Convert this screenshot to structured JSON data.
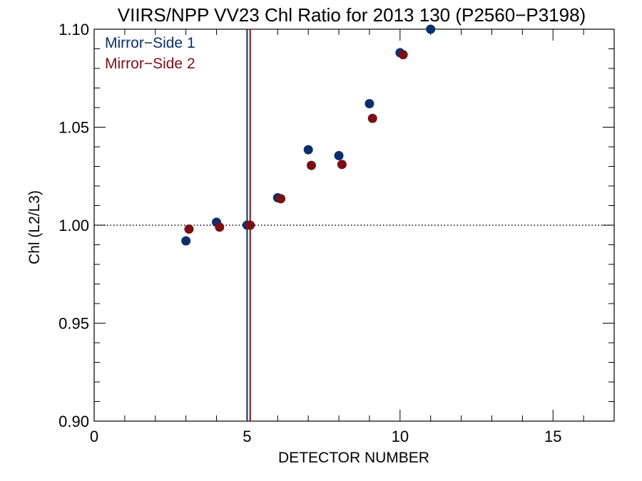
{
  "chart_data": {
    "type": "scatter",
    "title": "VIIRS/NPP VV23 Chl Ratio for 2013 130 (P2560−P3198)",
    "xlabel": "DETECTOR NUMBER",
    "ylabel": "Chl (L2/L3)",
    "xlim": [
      0,
      17
    ],
    "ylim": [
      0.9,
      1.1
    ],
    "x_ticks": [
      0,
      5,
      10,
      15
    ],
    "x_tick_labels": [
      "0",
      "5",
      "10",
      "15"
    ],
    "x_minor_step": 1,
    "y_ticks": [
      0.9,
      0.95,
      1.0,
      1.05,
      1.1
    ],
    "y_tick_labels": [
      "0.90",
      "0.95",
      "1.00",
      "1.05",
      "1.10"
    ],
    "y_minor_step": 0.01,
    "reference_line": {
      "y": 1.0,
      "style": "dotted",
      "color": "#000000"
    },
    "legend_position": "top-left",
    "series": [
      {
        "name": "Mirror−Side 1",
        "color": "#0b2f6b",
        "x": [
          3,
          4,
          5,
          6,
          7,
          8,
          9,
          10,
          11
        ],
        "y": [
          0.992,
          1.0015,
          1.0,
          1.014,
          1.0385,
          1.0355,
          1.062,
          1.088,
          1.1
        ],
        "vline_x": 5.0
      },
      {
        "name": "Mirror−Side 2",
        "color": "#7a0f14",
        "x": [
          3.1,
          4.1,
          5.1,
          6.1,
          7.1,
          8.1,
          9.1,
          10.1
        ],
        "y": [
          0.998,
          0.999,
          1.0,
          1.0135,
          1.0305,
          1.031,
          1.0545,
          1.087
        ],
        "vline_x": 5.1
      }
    ]
  }
}
